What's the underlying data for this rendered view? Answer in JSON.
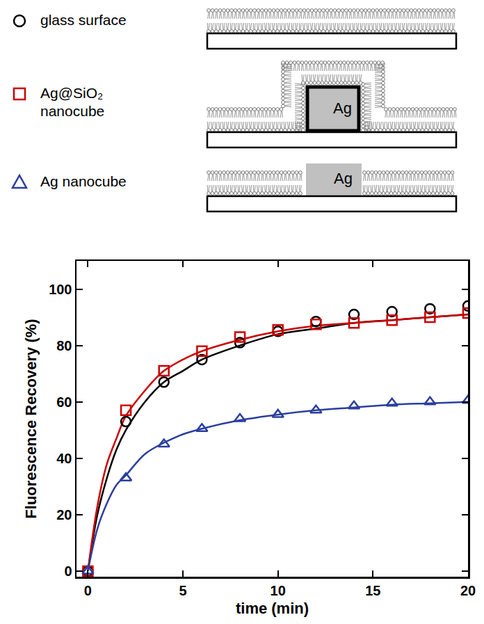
{
  "chart_data": {
    "type": "scatter",
    "x_label": "time (min)",
    "y_label": "Fluorescence Recovery (%)",
    "xlim": [
      -0.6,
      20
    ],
    "xticks": [
      0,
      5,
      10,
      15,
      20
    ],
    "ylim": [
      -2,
      110
    ],
    "yticks": [
      0,
      20,
      40,
      60,
      80,
      100
    ],
    "grid": false,
    "legend": "top",
    "schematic": {
      "particle_label": "Ag"
    },
    "x": [
      0,
      2,
      4,
      6,
      8,
      10,
      12,
      14,
      16,
      18,
      20
    ],
    "fit_x": [
      0,
      0.5,
      1,
      1.5,
      2,
      3,
      4,
      5,
      6,
      8,
      10,
      12,
      14,
      16,
      18,
      20
    ],
    "series": [
      {
        "name": "glass surface",
        "color": "#000000",
        "marker": "circle-open",
        "values": [
          0,
          53,
          67,
          75,
          81,
          85,
          88.5,
          91,
          92,
          93,
          94
        ],
        "fit_values": [
          0,
          20,
          33,
          43,
          50,
          60,
          67,
          71,
          75,
          80,
          84,
          86,
          88,
          89,
          90,
          91
        ]
      },
      {
        "name": "Ag@SiO₂ nanocube",
        "color": "#cc0000",
        "marker": "square-open",
        "values": [
          0,
          57,
          71,
          78,
          83,
          85.5,
          87.5,
          88,
          89,
          90,
          91.5
        ],
        "fit_values": [
          0,
          23,
          38,
          47,
          55,
          64,
          71,
          75,
          78,
          82,
          85,
          87,
          88,
          89,
          90,
          91
        ]
      },
      {
        "name": "Ag nanocube",
        "color": "#2b3f9e",
        "marker": "triangle-up-open",
        "values": [
          0,
          33,
          45,
          50.5,
          54,
          55.5,
          57,
          58.5,
          59.5,
          60,
          60.5
        ],
        "fit_values": [
          0,
          15,
          24,
          30.5,
          34,
          41.5,
          45.5,
          48.5,
          50.5,
          53.5,
          55.5,
          57,
          58,
          59,
          59.5,
          60
        ]
      }
    ]
  }
}
